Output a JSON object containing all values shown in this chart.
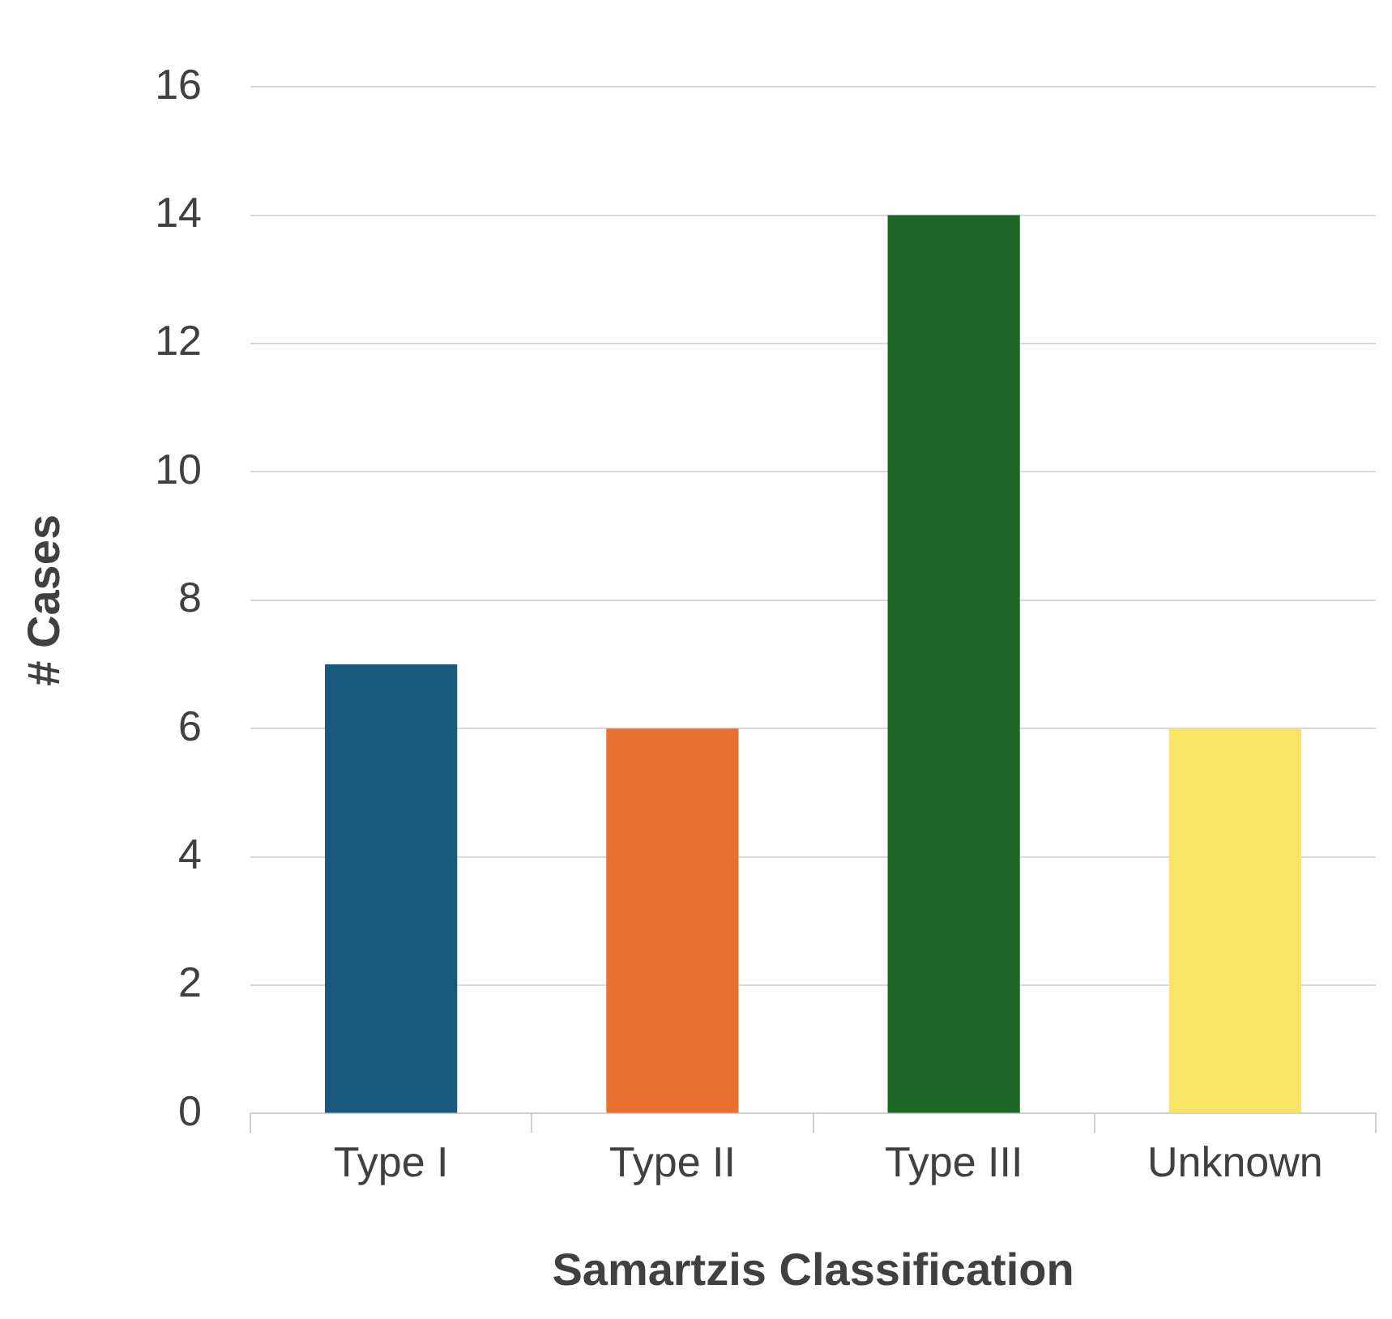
{
  "chart_data": {
    "type": "bar",
    "xlabel": "Samartzis Classification",
    "ylabel": "# Cases",
    "categories": [
      "Type I",
      "Type II",
      "Type III",
      "Unknown"
    ],
    "values": [
      7,
      6,
      14,
      6
    ],
    "colors": [
      "#175a7e",
      "#e87030",
      "#1d6627",
      "#f9e464"
    ],
    "ylim": [
      0,
      16
    ],
    "yticks": [
      0,
      2,
      4,
      6,
      8,
      10,
      12,
      14,
      16
    ],
    "grid": "y"
  }
}
